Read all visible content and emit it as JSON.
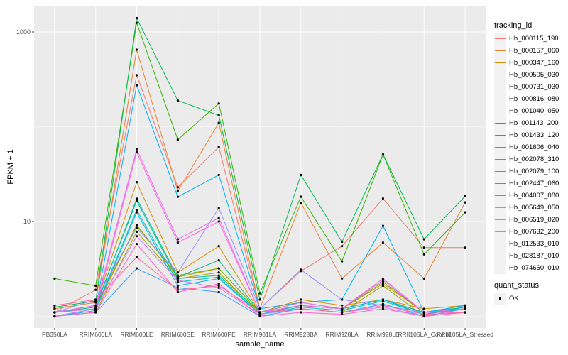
{
  "figure": {
    "panel_color": "#ebebeb",
    "grid_color": "#ffffff",
    "axis_text_color": "#4d4d4d",
    "tick_color": "#333333",
    "point_color": "#000000",
    "legend_key_color": "#f2f2f2"
  },
  "axes": {
    "x_title": "sample_name",
    "y_title": "FPKM + 1"
  },
  "legend": {
    "tracking_title": "tracking_id",
    "quant_title": "quant_status",
    "quant_ok_label": "OK"
  },
  "chart_data": {
    "type": "line",
    "title": "",
    "xlabel": "sample_name",
    "ylabel": "FPKM + 1",
    "y_scale": "log10",
    "y_ticks": [
      10,
      1000
    ],
    "y_minor": [
      1,
      100
    ],
    "ylim": [
      0.75,
      1900
    ],
    "grid": true,
    "legend_position": "right",
    "point_shape": "filled-circle",
    "quant_status": "OK",
    "categories": [
      "PB350LA",
      "RRIM600LA",
      "RRIM600LE",
      "RRIM600SE",
      "RRIM600PE",
      "RRIM901LA",
      "RRIM928BA",
      "RRIM928LA",
      "RRIM928LE",
      "RRII105LA_Control",
      "RRII105LA_Stressed"
    ],
    "series": [
      {
        "name": "Hb_000115_190",
        "color": "#F8766D",
        "values": [
          1.1,
          1.9,
          350,
          23,
          61,
          1.2,
          3.0,
          5.5,
          17.5,
          5.3,
          5.3
        ]
      },
      {
        "name": "Hb_000157_060",
        "color": "#EA8331",
        "values": [
          1.2,
          1.4,
          650,
          21,
          110,
          1.2,
          15.7,
          2.5,
          6.0,
          2.5,
          15.9
        ]
      },
      {
        "name": "Hb_000347_160",
        "color": "#D89000",
        "values": [
          1.1,
          1.3,
          26,
          2.9,
          5.5,
          1.1,
          1.5,
          1.3,
          1.5,
          1.2,
          1.3
        ]
      },
      {
        "name": "Hb_000505_030",
        "color": "#C09B00",
        "values": [
          1.0,
          1.2,
          9.2,
          2.6,
          3.2,
          1.1,
          1.3,
          1.2,
          2.2,
          1.1,
          1.2
        ]
      },
      {
        "name": "Hb_000731_030",
        "color": "#A3A500",
        "values": [
          1.0,
          1.1,
          7.8,
          2.5,
          2.9,
          1.05,
          1.2,
          1.1,
          2.1,
          1.0,
          1.1
        ]
      },
      {
        "name": "Hb_000816_080",
        "color": "#7CAE00",
        "values": [
          1.1,
          1.3,
          9.0,
          2.7,
          3.2,
          1.1,
          1.4,
          1.2,
          2.3,
          1.1,
          1.2
        ]
      },
      {
        "name": "Hb_001040_050",
        "color": "#39B600",
        "values": [
          2.5,
          2.1,
          1250,
          73,
          176,
          1.75,
          18.3,
          3.8,
          51,
          4.5,
          12.5
        ]
      },
      {
        "name": "Hb_001143_200",
        "color": "#00BB4E",
        "values": [
          1.25,
          1.45,
          1400,
          189,
          132,
          1.5,
          31,
          6.1,
          51,
          6.5,
          18.5
        ]
      },
      {
        "name": "Hb_001433_120",
        "color": "#00BF7D",
        "values": [
          1.1,
          1.25,
          17.4,
          2.6,
          3.9,
          1.1,
          1.3,
          1.2,
          1.5,
          1.1,
          1.25
        ]
      },
      {
        "name": "Hb_001606_040",
        "color": "#00C1A3",
        "values": [
          1.1,
          1.3,
          16.5,
          2.5,
          2.7,
          1.1,
          1.3,
          1.2,
          1.5,
          1.1,
          1.3
        ]
      },
      {
        "name": "Hb_002078_310",
        "color": "#00BFC4",
        "values": [
          1.0,
          1.2,
          13.2,
          2.3,
          2.6,
          1.05,
          1.25,
          1.15,
          1.45,
          1.05,
          1.2
        ]
      },
      {
        "name": "Hb_002079_100",
        "color": "#00BAE0",
        "values": [
          1.0,
          1.15,
          12.5,
          2.1,
          2.5,
          1.05,
          1.3,
          1.2,
          1.5,
          1.05,
          1.25
        ]
      },
      {
        "name": "Hb_002447_060",
        "color": "#00B0F6",
        "values": [
          1.1,
          1.2,
          275,
          18.2,
          31,
          1.2,
          1.4,
          1.5,
          9.0,
          1.1,
          1.3
        ]
      },
      {
        "name": "Hb_004007_080",
        "color": "#35A2FF",
        "values": [
          1.0,
          1.1,
          3.2,
          2.0,
          1.8,
          1.0,
          1.2,
          1.1,
          1.35,
          1.0,
          1.2
        ]
      },
      {
        "name": "Hb_005649_050",
        "color": "#9590FF",
        "values": [
          1.1,
          1.5,
          8.5,
          2.9,
          13.9,
          1.2,
          3.1,
          1.5,
          1.3,
          1.1,
          1.1
        ]
      },
      {
        "name": "Hb_006519_020",
        "color": "#C77CFF",
        "values": [
          1.0,
          1.2,
          7.0,
          2.4,
          2.0,
          1.05,
          1.2,
          1.1,
          1.25,
          1.0,
          1.1
        ]
      },
      {
        "name": "Hb_007632_200",
        "color": "#E76BF3",
        "values": [
          1.1,
          1.3,
          58,
          6.5,
          10.9,
          1.1,
          1.4,
          1.2,
          2.4,
          1.1,
          1.2
        ]
      },
      {
        "name": "Hb_012533_010",
        "color": "#FA62DB",
        "values": [
          1.1,
          1.2,
          54,
          6.0,
          10.0,
          1.1,
          1.3,
          1.2,
          2.5,
          1.1,
          1.1
        ]
      },
      {
        "name": "Hb_028187_010",
        "color": "#FF61CC",
        "values": [
          1.0,
          1.1,
          5.8,
          1.8,
          2.2,
          1.0,
          1.1,
          1.05,
          1.2,
          1.0,
          1.1
        ]
      },
      {
        "name": "Hb_074660_010",
        "color": "#FF6A98",
        "values": [
          1.3,
          1.5,
          4.2,
          1.9,
          2.1,
          1.1,
          1.2,
          1.1,
          1.3,
          1.05,
          1.1
        ]
      }
    ]
  }
}
